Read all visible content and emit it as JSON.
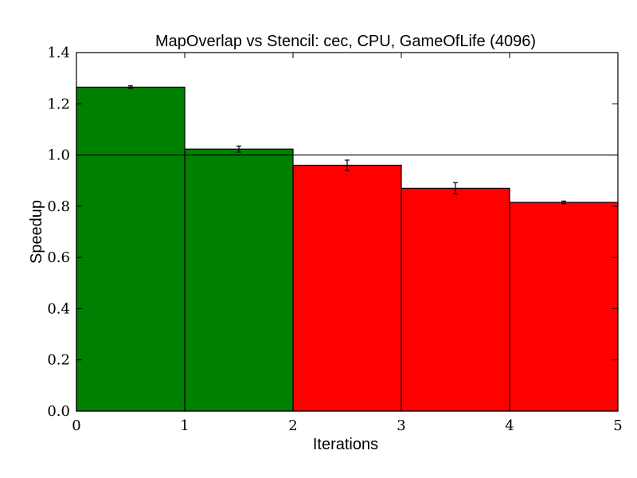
{
  "chart_data": {
    "type": "bar",
    "title": "MapOverlap vs Stencil: cec, CPU, GameOfLife (4096)",
    "xlabel": "Iterations",
    "ylabel": "Speedup",
    "xlim": [
      0,
      5
    ],
    "ylim": [
      0,
      1.4
    ],
    "x_ticks": [
      "0",
      "1",
      "2",
      "3",
      "4",
      "5"
    ],
    "y_ticks": [
      "0.0",
      "0.2",
      "0.4",
      "0.6",
      "0.8",
      "1.0",
      "1.2",
      "1.4"
    ],
    "reference_line": 1.0,
    "grid": false,
    "bars": [
      {
        "x_start": 0,
        "x_end": 1,
        "value": 1.265,
        "error": 0.005,
        "color": "#008000"
      },
      {
        "x_start": 1,
        "x_end": 2,
        "value": 1.023,
        "error": 0.012,
        "color": "#008000"
      },
      {
        "x_start": 2,
        "x_end": 3,
        "value": 0.96,
        "error": 0.02,
        "color": "#ff0000"
      },
      {
        "x_start": 3,
        "x_end": 4,
        "value": 0.87,
        "error": 0.022,
        "color": "#ff0000"
      },
      {
        "x_start": 4,
        "x_end": 5,
        "value": 0.815,
        "error": 0.005,
        "color": "#ff0000"
      }
    ]
  }
}
